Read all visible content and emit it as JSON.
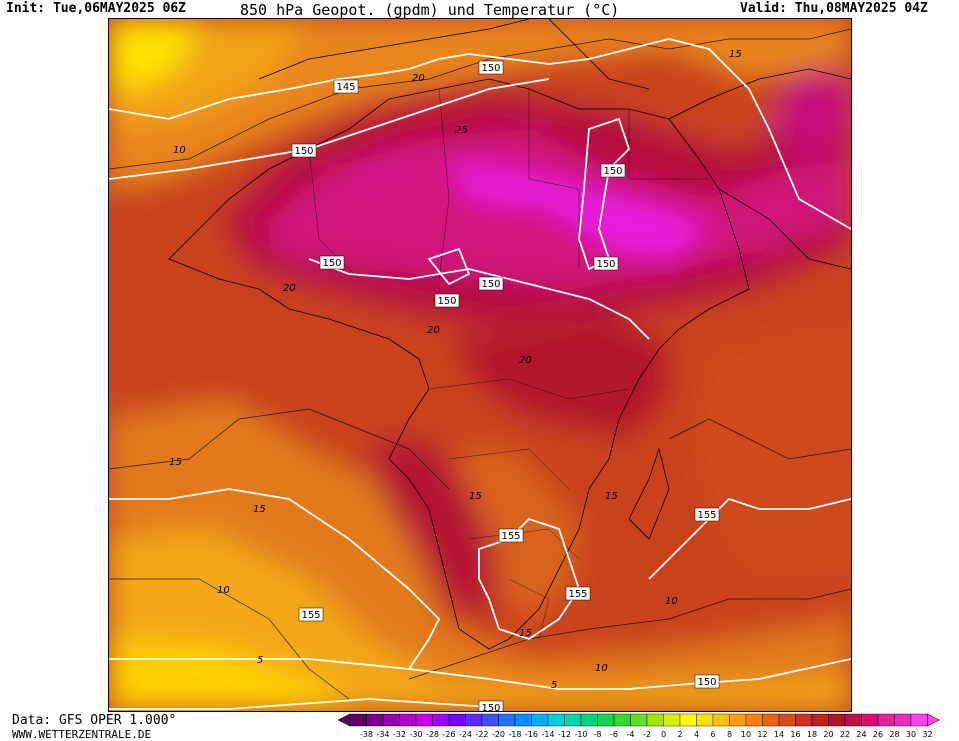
{
  "header": {
    "init": "Init: Tue,06MAY2025 06Z",
    "title": "850 hPa Geopot. (gpdm) und Temperatur (°C)",
    "valid": "Valid: Thu,08MAY2025 04Z"
  },
  "footer": {
    "data": "Data: GFS OPER 1.000°",
    "site": "WWW.WETTERZENTRALE.DE"
  },
  "colors": {
    "background_warm": "#c44a1e",
    "hot_core": "#e81ee0",
    "isoline": "#ffffff",
    "coast": "#000000"
  },
  "geopotential_labels": [
    "150",
    "150",
    "150",
    "150",
    "150",
    "150",
    "150",
    "145",
    "155",
    "155",
    "155",
    "155",
    "150",
    "150"
  ],
  "temperature_labels": [
    "10",
    "15",
    "20",
    "25",
    "20",
    "20",
    "20",
    "15",
    "15",
    "15",
    "10",
    "5",
    "15",
    "10",
    "5",
    "10",
    "15"
  ],
  "legend": {
    "ticks": [
      "-38",
      "-34",
      "-32",
      "-30",
      "-28",
      "-26",
      "-24",
      "-22",
      "-20",
      "-18",
      "-16",
      "-14",
      "-12",
      "-10",
      "-8",
      "-6",
      "-4",
      "-2",
      "0",
      "2",
      "4",
      "6",
      "8",
      "10",
      "12",
      "14",
      "16",
      "18",
      "20",
      "22",
      "24",
      "26",
      "28",
      "30",
      "32"
    ],
    "colors": [
      "#5a0064",
      "#7a0090",
      "#9a00b4",
      "#b400d2",
      "#c800f0",
      "#a000ff",
      "#7800ff",
      "#5a2cff",
      "#3c50ff",
      "#2070ff",
      "#0090ff",
      "#00b0ff",
      "#00d0e0",
      "#00d8b0",
      "#00d880",
      "#10d850",
      "#30dc30",
      "#60e020",
      "#a0e800",
      "#d8f000",
      "#ffff00",
      "#ffe000",
      "#ffc000",
      "#ffa000",
      "#ff8000",
      "#f06010",
      "#e04818",
      "#d03020",
      "#c02020",
      "#b01028",
      "#c01048",
      "#d81070",
      "#e81ea0",
      "#f028c8",
      "#ff40f0"
    ]
  }
}
